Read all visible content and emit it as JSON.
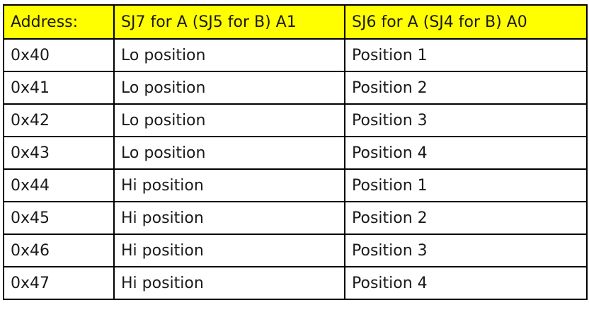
{
  "table": {
    "header_color": "#ffff00",
    "headers": [
      "Address:",
      "SJ7 for A (SJ5 for B) A1",
      "SJ6 for A (SJ4 for B) A0"
    ],
    "rows": [
      [
        "0x40",
        "Lo position",
        "Position 1"
      ],
      [
        "0x41",
        "Lo position",
        "Position 2"
      ],
      [
        "0x42",
        "Lo position",
        "Position 3"
      ],
      [
        "0x43",
        "Lo position",
        "Position 4"
      ],
      [
        "0x44",
        "Hi position",
        "Position 1"
      ],
      [
        "0x45",
        "Hi position",
        "Position 2"
      ],
      [
        "0x46",
        "Hi position",
        "Position 3"
      ],
      [
        "0x47",
        "Hi position",
        "Position 4"
      ]
    ]
  }
}
